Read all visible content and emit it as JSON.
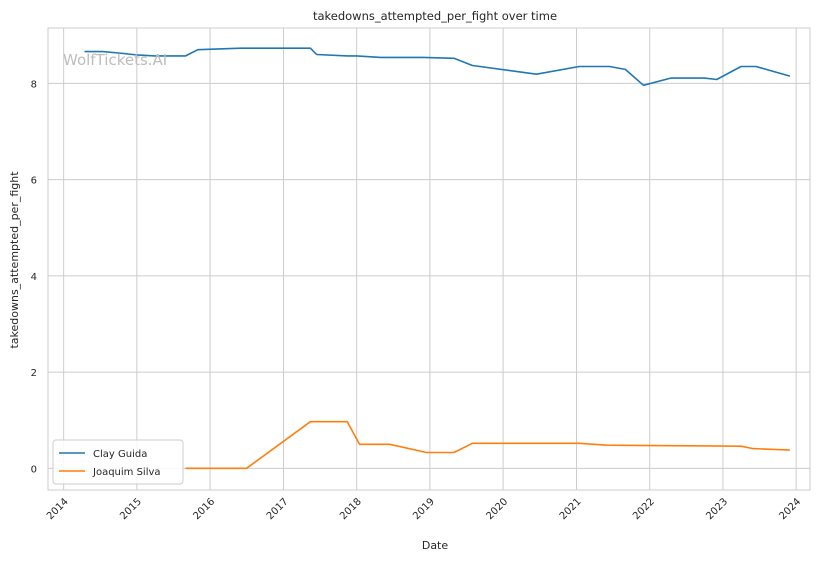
{
  "watermark": "WolfTickets.AI",
  "chart_data": {
    "type": "line",
    "title": "takedowns_attempted_per_fight over time",
    "xlabel": "Date",
    "ylabel": "takedowns_attempted_per_fight",
    "xlim": [
      "2013-10-15",
      "2024-03-10"
    ],
    "ylim": [
      -0.45,
      9.15
    ],
    "x_ticks": [
      "2014",
      "2015",
      "2016",
      "2017",
      "2018",
      "2019",
      "2020",
      "2021",
      "2022",
      "2023",
      "2024"
    ],
    "y_ticks": [
      "0",
      "2",
      "4",
      "6",
      "8"
    ],
    "grid": true,
    "legend_position": "lower-left",
    "series": [
      {
        "name": "Clay Guida",
        "color": "#1f77b4",
        "points": [
          [
            "2014-04-15",
            8.66
          ],
          [
            "2014-07-15",
            8.66
          ],
          [
            "2014-10-01",
            8.63
          ],
          [
            "2015-01-01",
            8.59
          ],
          [
            "2015-04-01",
            8.57
          ],
          [
            "2015-09-01",
            8.57
          ],
          [
            "2015-11-01",
            8.7
          ],
          [
            "2016-06-01",
            8.73
          ],
          [
            "2017-05-15",
            8.73
          ],
          [
            "2017-06-15",
            8.6
          ],
          [
            "2017-11-15",
            8.57
          ],
          [
            "2018-01-01",
            8.57
          ],
          [
            "2018-05-01",
            8.54
          ],
          [
            "2018-12-01",
            8.54
          ],
          [
            "2019-05-01",
            8.52
          ],
          [
            "2019-08-01",
            8.37
          ],
          [
            "2020-06-15",
            8.19
          ],
          [
            "2021-01-15",
            8.35
          ],
          [
            "2021-06-15",
            8.35
          ],
          [
            "2021-09-01",
            8.29
          ],
          [
            "2021-12-01",
            7.96
          ],
          [
            "2022-04-15",
            8.11
          ],
          [
            "2022-10-01",
            8.11
          ],
          [
            "2022-12-01",
            8.08
          ],
          [
            "2023-04-01",
            8.35
          ],
          [
            "2023-06-15",
            8.35
          ],
          [
            "2023-12-01",
            8.15
          ]
        ]
      },
      {
        "name": "Joaquim Silva",
        "color": "#ff7f0e",
        "points": [
          [
            "2015-09-01",
            0.0
          ],
          [
            "2016-07-01",
            0.0
          ],
          [
            "2017-05-15",
            0.97
          ],
          [
            "2017-11-15",
            0.97
          ],
          [
            "2018-01-15",
            0.5
          ],
          [
            "2018-06-15",
            0.5
          ],
          [
            "2018-12-15",
            0.33
          ],
          [
            "2019-05-01",
            0.33
          ],
          [
            "2019-08-01",
            0.52
          ],
          [
            "2021-01-15",
            0.52
          ],
          [
            "2021-06-01",
            0.48
          ],
          [
            "2023-04-01",
            0.46
          ],
          [
            "2023-06-01",
            0.41
          ],
          [
            "2023-12-01",
            0.38
          ]
        ]
      }
    ]
  }
}
